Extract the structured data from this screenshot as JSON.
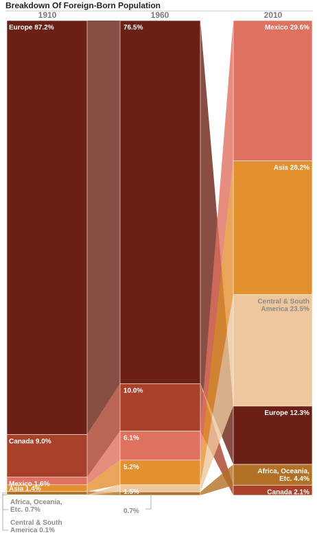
{
  "chart_data": {
    "type": "stacked-bar",
    "title": "Breakdown Of Foreign-Born Population",
    "categories": [
      "1910",
      "1960",
      "2010"
    ],
    "segments": [
      {
        "year": "1910",
        "label": "Europe 87.2%",
        "region": "Europe",
        "value": 87.2,
        "color": "#6a2014"
      },
      {
        "year": "1910",
        "label": "Canada 9.0%",
        "region": "Canada",
        "value": 9.0,
        "color": "#a9402a"
      },
      {
        "year": "1910",
        "label": "Mexico 1.6%",
        "region": "Mexico",
        "value": 1.6,
        "color": "#e07060"
      },
      {
        "year": "1910",
        "label": "Asia 1.4%",
        "region": "Asia",
        "value": 1.4,
        "color": "#e3902e"
      },
      {
        "year": "1910",
        "label": "Africa, Oceania, Etc. 0.7%",
        "region": "Africa, Oceania, Etc.",
        "value": 0.7,
        "color": "#b27125"
      },
      {
        "year": "1910",
        "label": "Central & South America 0.1%",
        "region": "Central & South America",
        "value": 0.1,
        "color": "#eec79c"
      },
      {
        "year": "1960",
        "label": "76.5%",
        "region": "Europe",
        "value": 76.5,
        "color": "#6a2014"
      },
      {
        "year": "1960",
        "label": "10.0%",
        "region": "Canada",
        "value": 10.0,
        "color": "#a9402a"
      },
      {
        "year": "1960",
        "label": "6.1%",
        "region": "Mexico",
        "value": 6.1,
        "color": "#e07060"
      },
      {
        "year": "1960",
        "label": "5.2%",
        "region": "Asia",
        "value": 5.2,
        "color": "#e3902e"
      },
      {
        "year": "1960",
        "label": "1.5%",
        "region": "Central & South America",
        "value": 1.5,
        "color": "#eec79c"
      },
      {
        "year": "1960",
        "label": "0.7%",
        "region": "Africa, Oceania, Etc.",
        "value": 0.7,
        "color": "#b27125"
      },
      {
        "year": "2010",
        "label": "Mexico 29.6%",
        "region": "Mexico",
        "value": 29.6,
        "color": "#e07060"
      },
      {
        "year": "2010",
        "label": "Asia 28.2%",
        "region": "Asia",
        "value": 28.2,
        "color": "#e3902e"
      },
      {
        "year": "2010",
        "label": "Central & South America 23.5%",
        "region": "Central & South America",
        "value": 23.5,
        "color": "#eec79c"
      },
      {
        "year": "2010",
        "label": "Europe 12.3%",
        "region": "Europe",
        "value": 12.3,
        "color": "#6a2014"
      },
      {
        "year": "2010",
        "label": "Africa, Oceania, Etc. 4.4%",
        "region": "Africa, Oceania, Etc.",
        "value": 4.4,
        "color": "#b27125"
      },
      {
        "year": "2010",
        "label": "Canada 2.1%",
        "region": "Canada",
        "value": 2.1,
        "color": "#a9402a"
      }
    ],
    "colors": {
      "Europe": "#6a2014",
      "Canada": "#a9402a",
      "Mexico": "#e07060",
      "Asia": "#e3902e",
      "Africa, Oceania, Etc.": "#b27125",
      "Central & South America": "#eec79c",
      "year_label": "#7a7a7a",
      "dark_label": "#8a8a8a"
    }
  }
}
